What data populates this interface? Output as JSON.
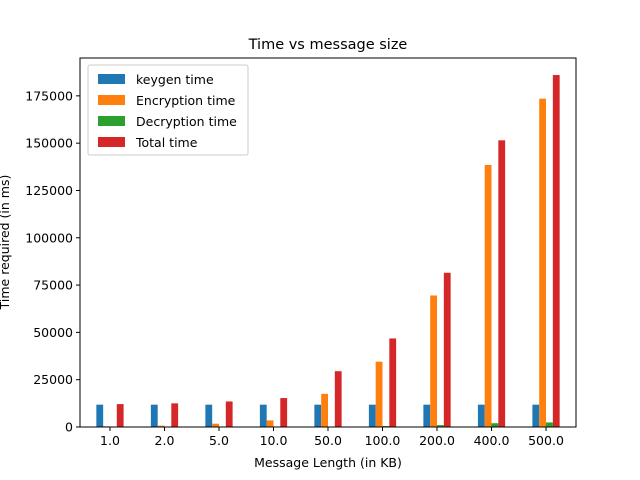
{
  "chart_data": {
    "type": "bar",
    "title": "Time vs message size",
    "xlabel": "Message Length (in KB)",
    "ylabel": "Time required (in ms)",
    "categories": [
      "1.0",
      "2.0",
      "5.0",
      "10.0",
      "50.0",
      "100.0",
      "200.0",
      "400.0",
      "500.0"
    ],
    "series": [
      {
        "name": "keygen time",
        "color": "#1f77b4",
        "values": [
          11800,
          11800,
          11800,
          11800,
          11800,
          11800,
          11800,
          11800,
          11800
        ]
      },
      {
        "name": "Encryption time",
        "color": "#ff7f0e",
        "values": [
          350,
          700,
          1750,
          3500,
          17500,
          34500,
          69500,
          138500,
          173500
        ]
      },
      {
        "name": "Decryption time",
        "color": "#2ca02c",
        "values": [
          5,
          10,
          25,
          50,
          250,
          500,
          1000,
          2000,
          2400
        ]
      },
      {
        "name": "Total time",
        "color": "#d62728",
        "values": [
          12100,
          12500,
          13500,
          15300,
          29500,
          46800,
          81500,
          151500,
          186000
        ]
      }
    ],
    "ylim": [
      0,
      195000
    ],
    "yticks": [
      0,
      25000,
      50000,
      75000,
      100000,
      125000,
      150000,
      175000
    ],
    "grid": false,
    "legend_position": "top-left"
  }
}
